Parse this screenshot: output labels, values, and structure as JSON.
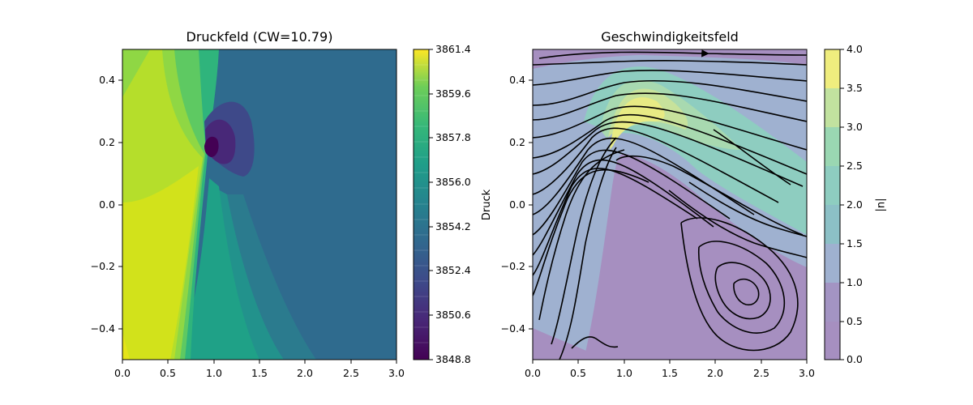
{
  "chart_data": [
    {
      "type": "heatmap",
      "subtype": "filled-contour",
      "title": "Druckfeld (CW=10.79)",
      "xlim": [
        0.0,
        3.0
      ],
      "ylim": [
        -0.5,
        0.5
      ],
      "x_ticks": [
        "0.0",
        "0.5",
        "1.0",
        "1.5",
        "2.0",
        "2.5",
        "3.0"
      ],
      "y_ticks": [
        "0.4",
        "0.2",
        "0.0",
        "−0.2",
        "−0.4"
      ],
      "colormap": "viridis",
      "colorbar": {
        "label": "Druck",
        "range": [
          3848.8,
          3861.4
        ],
        "levels": 21,
        "ticks": [
          "3861.4",
          "3859.6",
          "3857.8",
          "3856.0",
          "3854.2",
          "3852.4",
          "3850.6",
          "3848.8"
        ]
      },
      "features": {
        "low_pressure_center": [
          0.95,
          0.17
        ],
        "high_pressure_region": "left side x<0.8",
        "far_field_level": 3853.0
      }
    },
    {
      "type": "heatmap",
      "subtype": "filled-contour-with-streamlines",
      "title": "Geschwindigkeitsfeld",
      "xlim": [
        0.0,
        3.0
      ],
      "ylim": [
        -0.5,
        0.5
      ],
      "x_ticks": [
        "0.0",
        "0.5",
        "1.0",
        "1.5",
        "2.0",
        "2.5",
        "3.0"
      ],
      "y_ticks": [
        "0.4",
        "0.2",
        "0.0",
        "−0.2",
        "−0.4"
      ],
      "colormap": "viridis (alpha 0.5)",
      "colorbar": {
        "label": "|u|",
        "range": [
          0.0,
          4.0
        ],
        "levels": 8,
        "ticks": [
          "4.0",
          "3.5",
          "3.0",
          "2.5",
          "2.0",
          "1.5",
          "1.0",
          "0.5",
          "0.0"
        ]
      },
      "features": {
        "obstacle_peak": [
          0.95,
          0.16
        ],
        "max_speed_region": [
          1.15,
          0.32
        ],
        "recirculation_vortex_center": [
          2.35,
          -0.27
        ]
      }
    }
  ]
}
